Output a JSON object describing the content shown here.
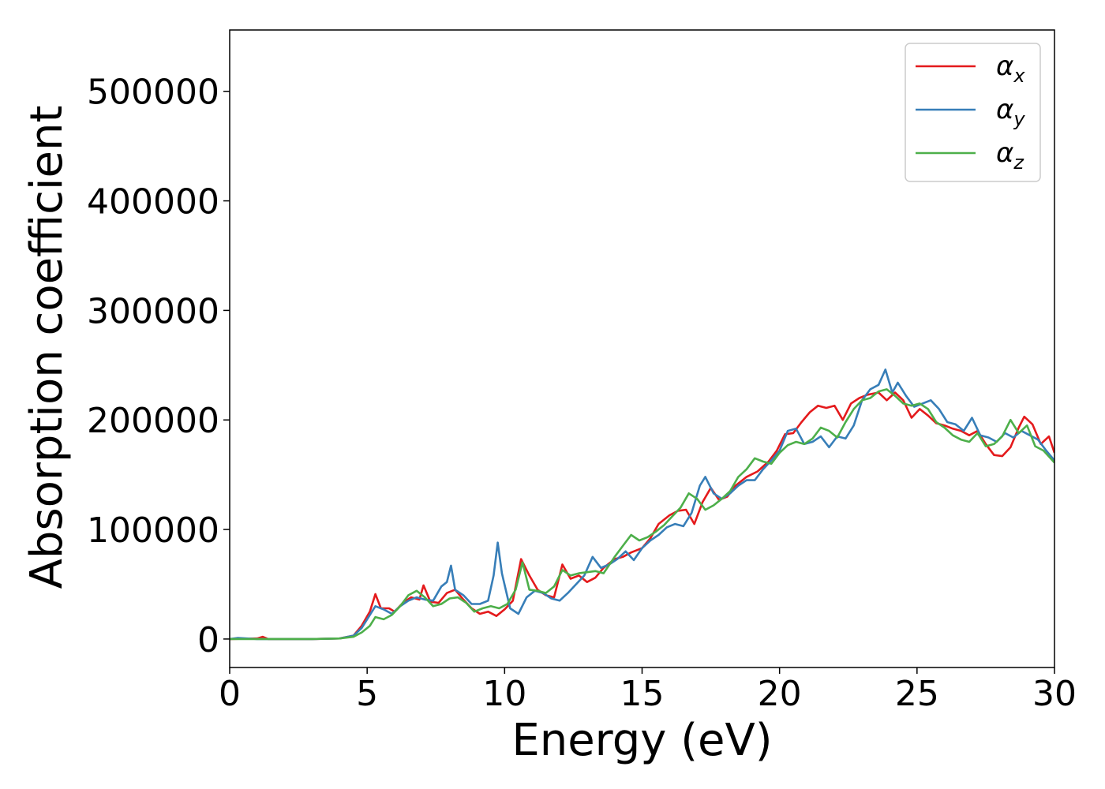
{
  "chart_data": {
    "type": "line",
    "xlabel": "Energy (eV)",
    "ylabel": "Absorption coefficient",
    "xlim": [
      0,
      30
    ],
    "ylim": [
      -26000,
      556000
    ],
    "x_ticks": [
      0,
      5,
      10,
      15,
      20,
      25,
      30
    ],
    "x_tick_labels": [
      "0",
      "5",
      "10",
      "15",
      "20",
      "25",
      "30"
    ],
    "y_ticks": [
      0,
      100000,
      200000,
      300000,
      400000,
      500000
    ],
    "y_tick_labels": [
      "0",
      "100000",
      "200000",
      "300000",
      "400000",
      "500000"
    ],
    "grid": false,
    "legend_position": "top-right",
    "series": [
      {
        "name": "α",
        "subscript": "x",
        "color": "#e41a1c",
        "points": [
          [
            0,
            0
          ],
          [
            1,
            500
          ],
          [
            1.2,
            2000
          ],
          [
            1.4,
            0
          ],
          [
            2,
            0
          ],
          [
            3,
            0
          ],
          [
            4,
            500
          ],
          [
            4.5,
            3000
          ],
          [
            4.8,
            12000
          ],
          [
            5.1,
            25000
          ],
          [
            5.3,
            41000
          ],
          [
            5.5,
            28000
          ],
          [
            5.8,
            28000
          ],
          [
            6,
            25000
          ],
          [
            6.3,
            33000
          ],
          [
            6.6,
            38000
          ],
          [
            6.9,
            36000
          ],
          [
            7.05,
            49000
          ],
          [
            7.3,
            34000
          ],
          [
            7.6,
            33000
          ],
          [
            7.9,
            42000
          ],
          [
            8.2,
            45000
          ],
          [
            8.5,
            36000
          ],
          [
            8.8,
            28000
          ],
          [
            9.1,
            23000
          ],
          [
            9.4,
            25000
          ],
          [
            9.7,
            21000
          ],
          [
            10,
            27000
          ],
          [
            10.3,
            35000
          ],
          [
            10.6,
            73000
          ],
          [
            10.9,
            58000
          ],
          [
            11.2,
            45000
          ],
          [
            11.5,
            40000
          ],
          [
            11.8,
            38000
          ],
          [
            12.1,
            68000
          ],
          [
            12.4,
            55000
          ],
          [
            12.7,
            58000
          ],
          [
            13,
            52000
          ],
          [
            13.3,
            56000
          ],
          [
            13.6,
            65000
          ],
          [
            14,
            73000
          ],
          [
            14.3,
            75000
          ],
          [
            14.6,
            79000
          ],
          [
            15,
            83000
          ],
          [
            15.3,
            92000
          ],
          [
            15.6,
            105000
          ],
          [
            16,
            113000
          ],
          [
            16.3,
            117000
          ],
          [
            16.6,
            118000
          ],
          [
            16.9,
            105000
          ],
          [
            17.2,
            125000
          ],
          [
            17.5,
            138000
          ],
          [
            17.8,
            127000
          ],
          [
            18.1,
            130000
          ],
          [
            18.4,
            140000
          ],
          [
            18.8,
            148000
          ],
          [
            19.2,
            153000
          ],
          [
            19.6,
            162000
          ],
          [
            19.9,
            172000
          ],
          [
            20.2,
            187000
          ],
          [
            20.5,
            188000
          ],
          [
            20.8,
            198000
          ],
          [
            21.1,
            207000
          ],
          [
            21.4,
            213000
          ],
          [
            21.7,
            211000
          ],
          [
            22,
            213000
          ],
          [
            22.3,
            200000
          ],
          [
            22.6,
            215000
          ],
          [
            22.9,
            220000
          ],
          [
            23.2,
            223000
          ],
          [
            23.6,
            225000
          ],
          [
            23.9,
            218000
          ],
          [
            24.2,
            225000
          ],
          [
            24.5,
            218000
          ],
          [
            24.8,
            202000
          ],
          [
            25.1,
            210000
          ],
          [
            25.4,
            204000
          ],
          [
            25.7,
            197000
          ],
          [
            26,
            195000
          ],
          [
            26.3,
            192000
          ],
          [
            26.6,
            190000
          ],
          [
            26.9,
            186000
          ],
          [
            27.2,
            190000
          ],
          [
            27.5,
            178000
          ],
          [
            27.8,
            168000
          ],
          [
            28.1,
            167000
          ],
          [
            28.4,
            175000
          ],
          [
            28.7,
            193000
          ],
          [
            28.9,
            203000
          ],
          [
            29.2,
            196000
          ],
          [
            29.5,
            178000
          ],
          [
            29.8,
            185000
          ],
          [
            30,
            170000
          ]
        ]
      },
      {
        "name": "α",
        "subscript": "y",
        "color": "#377eb8",
        "points": [
          [
            0,
            0
          ],
          [
            0.3,
            1000
          ],
          [
            1,
            0
          ],
          [
            2,
            0
          ],
          [
            3,
            0
          ],
          [
            4,
            500
          ],
          [
            4.5,
            3000
          ],
          [
            4.8,
            10000
          ],
          [
            5.1,
            22000
          ],
          [
            5.3,
            30000
          ],
          [
            5.6,
            27000
          ],
          [
            5.9,
            23000
          ],
          [
            6.2,
            30000
          ],
          [
            6.5,
            35000
          ],
          [
            6.8,
            38000
          ],
          [
            7.1,
            36000
          ],
          [
            7.4,
            35000
          ],
          [
            7.7,
            48000
          ],
          [
            7.9,
            52000
          ],
          [
            8.05,
            67000
          ],
          [
            8.2,
            45000
          ],
          [
            8.5,
            40000
          ],
          [
            8.8,
            32000
          ],
          [
            9.1,
            32000
          ],
          [
            9.4,
            35000
          ],
          [
            9.6,
            58000
          ],
          [
            9.75,
            88000
          ],
          [
            9.9,
            60000
          ],
          [
            10.2,
            28000
          ],
          [
            10.5,
            23000
          ],
          [
            10.8,
            38000
          ],
          [
            11.1,
            44000
          ],
          [
            11.4,
            42000
          ],
          [
            11.7,
            37000
          ],
          [
            12,
            35000
          ],
          [
            12.3,
            42000
          ],
          [
            12.6,
            50000
          ],
          [
            12.9,
            58000
          ],
          [
            13.2,
            75000
          ],
          [
            13.5,
            65000
          ],
          [
            13.8,
            68000
          ],
          [
            14.1,
            73000
          ],
          [
            14.4,
            80000
          ],
          [
            14.7,
            72000
          ],
          [
            15,
            83000
          ],
          [
            15.3,
            90000
          ],
          [
            15.6,
            95000
          ],
          [
            15.9,
            102000
          ],
          [
            16.2,
            105000
          ],
          [
            16.5,
            103000
          ],
          [
            16.8,
            115000
          ],
          [
            17.1,
            140000
          ],
          [
            17.3,
            148000
          ],
          [
            17.6,
            133000
          ],
          [
            17.9,
            128000
          ],
          [
            18.2,
            133000
          ],
          [
            18.5,
            140000
          ],
          [
            18.8,
            145000
          ],
          [
            19.1,
            145000
          ],
          [
            19.4,
            155000
          ],
          [
            19.7,
            163000
          ],
          [
            20,
            172000
          ],
          [
            20.3,
            190000
          ],
          [
            20.6,
            192000
          ],
          [
            20.9,
            178000
          ],
          [
            21.2,
            180000
          ],
          [
            21.5,
            185000
          ],
          [
            21.8,
            175000
          ],
          [
            22.1,
            185000
          ],
          [
            22.4,
            183000
          ],
          [
            22.7,
            195000
          ],
          [
            23,
            218000
          ],
          [
            23.3,
            228000
          ],
          [
            23.6,
            232000
          ],
          [
            23.85,
            246000
          ],
          [
            24.1,
            225000
          ],
          [
            24.3,
            234000
          ],
          [
            24.6,
            222000
          ],
          [
            24.9,
            212000
          ],
          [
            25.2,
            215000
          ],
          [
            25.5,
            218000
          ],
          [
            25.8,
            210000
          ],
          [
            26.1,
            198000
          ],
          [
            26.4,
            196000
          ],
          [
            26.7,
            190000
          ],
          [
            27,
            202000
          ],
          [
            27.3,
            186000
          ],
          [
            27.6,
            184000
          ],
          [
            27.9,
            180000
          ],
          [
            28.2,
            188000
          ],
          [
            28.5,
            184000
          ],
          [
            28.8,
            190000
          ],
          [
            29.1,
            186000
          ],
          [
            29.4,
            182000
          ],
          [
            29.7,
            172000
          ],
          [
            30,
            163000
          ]
        ]
      },
      {
        "name": "α",
        "subscript": "z",
        "color": "#4daf4a",
        "points": [
          [
            0,
            0
          ],
          [
            1,
            0
          ],
          [
            2,
            0
          ],
          [
            3,
            0
          ],
          [
            4,
            500
          ],
          [
            4.5,
            2000
          ],
          [
            4.8,
            6000
          ],
          [
            5.1,
            12000
          ],
          [
            5.3,
            20000
          ],
          [
            5.6,
            18000
          ],
          [
            5.9,
            22000
          ],
          [
            6.2,
            30000
          ],
          [
            6.5,
            40000
          ],
          [
            6.8,
            44000
          ],
          [
            7.1,
            38000
          ],
          [
            7.4,
            30000
          ],
          [
            7.7,
            32000
          ],
          [
            8,
            37000
          ],
          [
            8.3,
            38000
          ],
          [
            8.6,
            33000
          ],
          [
            8.9,
            25000
          ],
          [
            9.2,
            28000
          ],
          [
            9.5,
            30000
          ],
          [
            9.8,
            28000
          ],
          [
            10.1,
            32000
          ],
          [
            10.4,
            45000
          ],
          [
            10.65,
            70000
          ],
          [
            10.9,
            45000
          ],
          [
            11.2,
            44000
          ],
          [
            11.5,
            42000
          ],
          [
            11.8,
            48000
          ],
          [
            12.1,
            63000
          ],
          [
            12.4,
            58000
          ],
          [
            12.7,
            60000
          ],
          [
            13,
            61000
          ],
          [
            13.3,
            62000
          ],
          [
            13.6,
            60000
          ],
          [
            14,
            75000
          ],
          [
            14.3,
            85000
          ],
          [
            14.6,
            95000
          ],
          [
            14.9,
            90000
          ],
          [
            15.2,
            93000
          ],
          [
            15.5,
            98000
          ],
          [
            15.8,
            104000
          ],
          [
            16.1,
            112000
          ],
          [
            16.4,
            120000
          ],
          [
            16.7,
            133000
          ],
          [
            17,
            128000
          ],
          [
            17.3,
            118000
          ],
          [
            17.6,
            122000
          ],
          [
            17.9,
            128000
          ],
          [
            18.2,
            135000
          ],
          [
            18.5,
            148000
          ],
          [
            18.8,
            155000
          ],
          [
            19.1,
            165000
          ],
          [
            19.4,
            162000
          ],
          [
            19.7,
            160000
          ],
          [
            20,
            170000
          ],
          [
            20.3,
            177000
          ],
          [
            20.6,
            180000
          ],
          [
            20.9,
            178000
          ],
          [
            21.2,
            183000
          ],
          [
            21.5,
            193000
          ],
          [
            21.8,
            190000
          ],
          [
            22.1,
            184000
          ],
          [
            22.4,
            198000
          ],
          [
            22.7,
            210000
          ],
          [
            23,
            218000
          ],
          [
            23.3,
            220000
          ],
          [
            23.6,
            226000
          ],
          [
            23.9,
            228000
          ],
          [
            24.2,
            222000
          ],
          [
            24.5,
            215000
          ],
          [
            24.8,
            213000
          ],
          [
            25.1,
            215000
          ],
          [
            25.4,
            210000
          ],
          [
            25.7,
            198000
          ],
          [
            26,
            193000
          ],
          [
            26.3,
            186000
          ],
          [
            26.6,
            182000
          ],
          [
            26.9,
            180000
          ],
          [
            27.2,
            188000
          ],
          [
            27.5,
            176000
          ],
          [
            27.8,
            178000
          ],
          [
            28.1,
            185000
          ],
          [
            28.4,
            200000
          ],
          [
            28.7,
            188000
          ],
          [
            29,
            195000
          ],
          [
            29.3,
            176000
          ],
          [
            29.6,
            172000
          ],
          [
            30,
            161000
          ]
        ]
      }
    ]
  }
}
